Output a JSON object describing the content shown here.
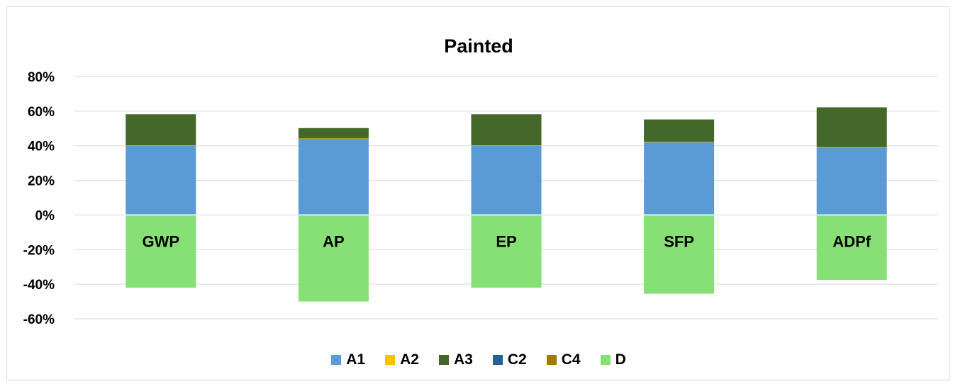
{
  "chart_data": {
    "type": "bar",
    "stacked": true,
    "title": "Painted",
    "xlabel": "",
    "ylabel": "",
    "categories": [
      "GWP",
      "AP",
      "EP",
      "SFP",
      "ADPf"
    ],
    "ylim": [
      -0.6,
      0.8
    ],
    "yticks": [
      0.8,
      0.6,
      0.4,
      0.2,
      0,
      -0.2,
      -0.4,
      -0.6
    ],
    "ytick_labels": [
      "80%",
      "60%",
      "40%",
      "20%",
      "0%",
      "-20%",
      "-40%",
      "-60%"
    ],
    "grid": true,
    "legend_position": "bottom",
    "category_labels_position": "inside-below-zero",
    "series": [
      {
        "name": "A1",
        "color": "#5b9bd5",
        "values": [
          0.4,
          0.44,
          0.4,
          0.42,
          0.39
        ]
      },
      {
        "name": "A2",
        "color": "#ffc000",
        "values": [
          0.002,
          0.002,
          0.002,
          0.002,
          0.002
        ]
      },
      {
        "name": "A3",
        "color": "#44672a",
        "values": [
          0.18,
          0.06,
          0.18,
          0.13,
          0.23
        ]
      },
      {
        "name": "C2",
        "color": "#255e91",
        "values": [
          0,
          0,
          0,
          0,
          0
        ]
      },
      {
        "name": "C4",
        "color": "#9e7b00",
        "values": [
          0,
          0,
          0,
          0,
          0
        ]
      },
      {
        "name": "D",
        "color": "#87e075",
        "values": [
          -0.42,
          -0.5,
          -0.42,
          -0.455,
          -0.375
        ]
      }
    ]
  }
}
